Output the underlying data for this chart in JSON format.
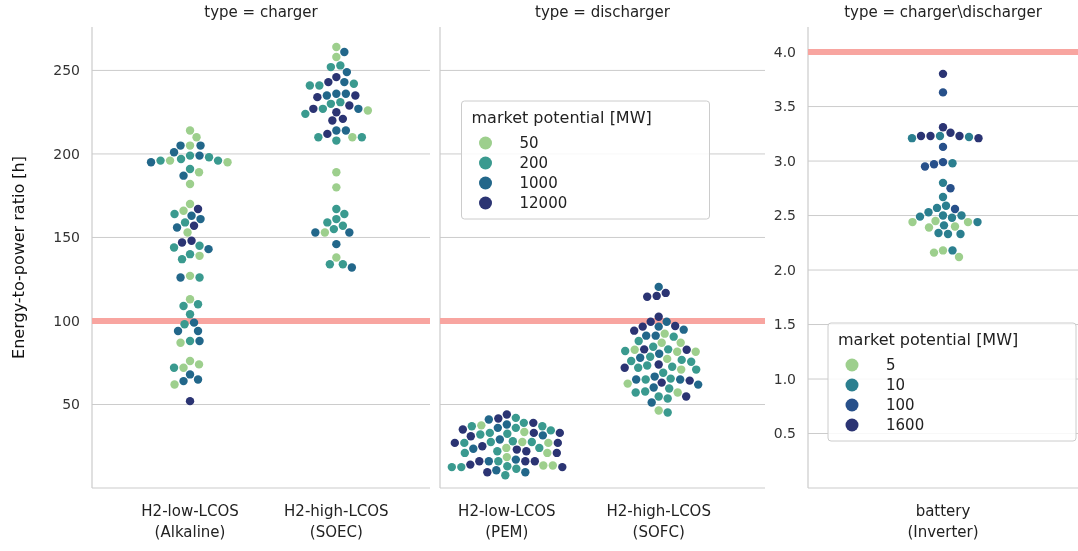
{
  "chart_data": [
    {
      "type": "scatter",
      "title": "type = charger",
      "ylabel": "Energy-to-power ratio [h]",
      "categories": [
        "H2-low-LCOS\n(Alkaline)",
        "H2-high-LCOS\n(SOEC)"
      ],
      "ylim": [
        0,
        276
      ],
      "yticks": [
        50,
        100,
        150,
        200,
        250
      ],
      "grid": "y",
      "marker": "circle",
      "ref_lines": [
        {
          "axis": "y",
          "value": 100,
          "color": "#f8a5a0"
        }
      ],
      "series": [
        {
          "color": "#9dcf8d",
          "x": [
            "H2-low-LCOS\n(Alkaline)",
            "H2-low-LCOS\n(Alkaline)",
            "H2-low-LCOS\n(Alkaline)",
            "H2-low-LCOS\n(Alkaline)",
            "H2-low-LCOS\n(Alkaline)",
            "H2-low-LCOS\n(Alkaline)",
            "H2-low-LCOS\n(Alkaline)",
            "H2-low-LCOS\n(Alkaline)",
            "H2-low-LCOS\n(Alkaline)",
            "H2-low-LCOS\n(Alkaline)",
            "H2-low-LCOS\n(Alkaline)",
            "H2-low-LCOS\n(Alkaline)",
            "H2-low-LCOS\n(Alkaline)",
            "H2-low-LCOS\n(Alkaline)",
            "H2-low-LCOS\n(Alkaline)",
            "H2-low-LCOS\n(Alkaline)",
            "H2-low-LCOS\n(Alkaline)",
            "H2-low-LCOS\n(Alkaline)",
            "H2-high-LCOS\n(SOEC)",
            "H2-high-LCOS\n(SOEC)",
            "H2-high-LCOS\n(SOEC)",
            "H2-high-LCOS\n(SOEC)",
            "H2-high-LCOS\n(SOEC)",
            "H2-high-LCOS\n(SOEC)",
            "H2-high-LCOS\n(SOEC)",
            "H2-high-LCOS\n(SOEC)"
          ],
          "values": [
            214,
            210,
            205,
            196,
            189,
            195,
            182,
            170,
            166,
            153,
            139,
            127,
            113,
            87,
            74,
            76,
            72,
            62,
            264,
            258,
            226,
            210,
            189,
            180,
            153,
            138
          ]
        },
        {
          "color": "#3a9a8f",
          "x": [
            "H2-low-LCOS\n(Alkaline)",
            "H2-low-LCOS\n(Alkaline)",
            "H2-low-LCOS\n(Alkaline)",
            "H2-low-LCOS\n(Alkaline)",
            "H2-low-LCOS\n(Alkaline)",
            "H2-low-LCOS\n(Alkaline)",
            "H2-low-LCOS\n(Alkaline)",
            "H2-low-LCOS\n(Alkaline)",
            "H2-low-LCOS\n(Alkaline)",
            "H2-low-LCOS\n(Alkaline)",
            "H2-low-LCOS\n(Alkaline)",
            "H2-low-LCOS\n(Alkaline)",
            "H2-low-LCOS\n(Alkaline)",
            "H2-low-LCOS\n(Alkaline)",
            "H2-low-LCOS\n(Alkaline)",
            "H2-low-LCOS\n(Alkaline)",
            "H2-low-LCOS\n(Alkaline)",
            "H2-low-LCOS\n(Alkaline)",
            "H2-low-LCOS\n(Alkaline)",
            "H2-high-LCOS\n(SOEC)",
            "H2-high-LCOS\n(SOEC)",
            "H2-high-LCOS\n(SOEC)",
            "H2-high-LCOS\n(SOEC)",
            "H2-high-LCOS\n(SOEC)",
            "H2-high-LCOS\n(SOEC)",
            "H2-high-LCOS\n(SOEC)",
            "H2-high-LCOS\n(SOEC)",
            "H2-high-LCOS\n(SOEC)",
            "H2-high-LCOS\n(SOEC)",
            "H2-high-LCOS\n(SOEC)",
            "H2-high-LCOS\n(SOEC)",
            "H2-high-LCOS\n(SOEC)",
            "H2-high-LCOS\n(SOEC)",
            "H2-high-LCOS\n(SOEC)",
            "H2-high-LCOS\n(SOEC)",
            "H2-high-LCOS\n(SOEC)",
            "H2-high-LCOS\n(SOEC)",
            "H2-high-LCOS\n(SOEC)",
            "H2-high-LCOS\n(SOEC)"
          ],
          "values": [
            199,
            196,
            198,
            197,
            196,
            191,
            164,
            159,
            144,
            145,
            137,
            140,
            126,
            109,
            110,
            104,
            98,
            88,
            72,
            253,
            252,
            241,
            241,
            242,
            231,
            230,
            227,
            224,
            210,
            208,
            210,
            167,
            164,
            161,
            159,
            157,
            155,
            134,
            134
          ]
        },
        {
          "color": "#22678a",
          "x": [
            "H2-low-LCOS\n(Alkaline)",
            "H2-low-LCOS\n(Alkaline)",
            "H2-low-LCOS\n(Alkaline)",
            "H2-low-LCOS\n(Alkaline)",
            "H2-low-LCOS\n(Alkaline)",
            "H2-low-LCOS\n(Alkaline)",
            "H2-low-LCOS\n(Alkaline)",
            "H2-low-LCOS\n(Alkaline)",
            "H2-low-LCOS\n(Alkaline)",
            "H2-low-LCOS\n(Alkaline)",
            "H2-low-LCOS\n(Alkaline)",
            "H2-low-LCOS\n(Alkaline)",
            "H2-low-LCOS\n(Alkaline)",
            "H2-low-LCOS\n(Alkaline)",
            "H2-low-LCOS\n(Alkaline)",
            "H2-low-LCOS\n(Alkaline)",
            "H2-low-LCOS\n(Alkaline)",
            "H2-low-LCOS\n(Alkaline)",
            "H2-high-LCOS\n(SOEC)",
            "H2-high-LCOS\n(SOEC)",
            "H2-high-LCOS\n(SOEC)",
            "H2-high-LCOS\n(SOEC)",
            "H2-high-LCOS\n(SOEC)",
            "H2-high-LCOS\n(SOEC)",
            "H2-high-LCOS\n(SOEC)",
            "H2-high-LCOS\n(SOEC)",
            "H2-high-LCOS\n(SOEC)",
            "H2-high-LCOS\n(SOEC)",
            "H2-high-LCOS\n(SOEC)",
            "H2-high-LCOS\n(SOEC)",
            "H2-high-LCOS\n(SOEC)"
          ],
          "values": [
            205,
            205,
            201,
            199,
            195,
            187,
            161,
            156,
            163,
            143,
            126,
            99,
            94,
            94,
            88,
            65,
            68,
            64,
            261,
            249,
            243,
            236,
            235,
            236,
            227,
            214,
            214,
            153,
            153,
            146,
            132
          ]
        },
        {
          "color": "#2b3473",
          "x": [
            "H2-low-LCOS\n(Alkaline)",
            "H2-low-LCOS\n(Alkaline)",
            "H2-low-LCOS\n(Alkaline)",
            "H2-low-LCOS\n(Alkaline)",
            "H2-low-LCOS\n(Alkaline)",
            "H2-high-LCOS\n(SOEC)",
            "H2-high-LCOS\n(SOEC)",
            "H2-high-LCOS\n(SOEC)",
            "H2-high-LCOS\n(SOEC)",
            "H2-high-LCOS\n(SOEC)",
            "H2-high-LCOS\n(SOEC)",
            "H2-high-LCOS\n(SOEC)",
            "H2-high-LCOS\n(SOEC)",
            "H2-high-LCOS\n(SOEC)",
            "H2-high-LCOS\n(SOEC)"
          ],
          "values": [
            167,
            157,
            147,
            148,
            52,
            246,
            243,
            234,
            235,
            229,
            227,
            225,
            220,
            221,
            212
          ]
        }
      ]
    },
    {
      "type": "scatter",
      "title": "type = discharger",
      "tick_labels": "x",
      "categories": [
        "H2-low-LCOS\n(PEM)",
        "H2-high-LCOS\n(SOFC)"
      ],
      "ylim": [
        0,
        276
      ],
      "yticks": [
        50,
        100,
        150,
        200,
        250
      ],
      "grid": "y",
      "marker": "circle",
      "legend": "top",
      "legend_title": "market potential [MW]",
      "ref_lines": [
        {
          "axis": "y",
          "value": 100,
          "color": "#f8a5a0"
        }
      ],
      "series": [
        {
          "name": "50",
          "color": "#9dcf8d",
          "x": [
            "H2-low-LCOS\n(PEM)",
            "H2-low-LCOS\n(PEM)",
            "H2-low-LCOS\n(PEM)",
            "H2-low-LCOS\n(PEM)",
            "H2-low-LCOS\n(PEM)",
            "H2-low-LCOS\n(PEM)",
            "H2-low-LCOS\n(PEM)",
            "H2-low-LCOS\n(PEM)",
            "H2-low-LCOS\n(PEM)",
            "H2-high-LCOS\n(SOFC)",
            "H2-high-LCOS\n(SOFC)",
            "H2-high-LCOS\n(SOFC)",
            "H2-high-LCOS\n(SOFC)",
            "H2-high-LCOS\n(SOFC)",
            "H2-high-LCOS\n(SOFC)",
            "H2-high-LCOS\n(SOFC)",
            "H2-high-LCOS\n(SOFC)",
            "H2-high-LCOS\n(SOFC)",
            "H2-high-LCOS\n(SOFC)",
            "H2-high-LCOS\n(SOFC)"
          ],
          "values": [
            37.5,
            33.5,
            27,
            27.5,
            24,
            21,
            18.5,
            13.5,
            13.5,
            92.4,
            87,
            87,
            81.6,
            81.6,
            82.8,
            77.3,
            70.9,
            62.5,
            57.2,
            46.4
          ]
        },
        {
          "name": "200",
          "color": "#3a9a8f",
          "x": [
            "H2-low-LCOS\n(PEM)",
            "H2-low-LCOS\n(PEM)",
            "H2-low-LCOS\n(PEM)",
            "H2-low-LCOS\n(PEM)",
            "H2-low-LCOS\n(PEM)",
            "H2-low-LCOS\n(PEM)",
            "H2-low-LCOS\n(PEM)",
            "H2-low-LCOS\n(PEM)",
            "H2-low-LCOS\n(PEM)",
            "H2-low-LCOS\n(PEM)",
            "H2-low-LCOS\n(PEM)",
            "H2-low-LCOS\n(PEM)",
            "H2-low-LCOS\n(PEM)",
            "H2-low-LCOS\n(PEM)",
            "H2-low-LCOS\n(PEM)",
            "H2-low-LCOS\n(PEM)",
            "H2-low-LCOS\n(PEM)",
            "H2-low-LCOS\n(PEM)",
            "H2-low-LCOS\n(PEM)",
            "H2-low-LCOS\n(PEM)",
            "H2-low-LCOS\n(PEM)",
            "H2-low-LCOS\n(PEM)",
            "H2-high-LCOS\n(SOFC)",
            "H2-high-LCOS\n(SOFC)",
            "H2-high-LCOS\n(SOFC)",
            "H2-high-LCOS\n(SOFC)",
            "H2-high-LCOS\n(SOFC)",
            "H2-high-LCOS\n(SOFC)",
            "H2-high-LCOS\n(SOFC)",
            "H2-high-LCOS\n(SOFC)",
            "H2-high-LCOS\n(SOFC)",
            "H2-high-LCOS\n(SOFC)",
            "H2-high-LCOS\n(SOFC)",
            "H2-high-LCOS\n(SOFC)",
            "H2-high-LCOS\n(SOFC)",
            "H2-high-LCOS\n(SOFC)",
            "H2-high-LCOS\n(SOFC)",
            "H2-high-LCOS\n(SOFC)",
            "H2-high-LCOS\n(SOFC)",
            "H2-high-LCOS\n(SOFC)",
            "H2-high-LCOS\n(SOFC)",
            "H2-high-LCOS\n(SOFC)",
            "H2-high-LCOS\n(SOFC)",
            "H2-high-LCOS\n(SOFC)"
          ],
          "values": [
            42,
            36,
            37,
            37,
            39,
            34.5,
            32,
            32.5,
            33,
            27,
            28,
            27.5,
            27.5,
            24,
            22,
            21,
            16,
            13,
            11.5,
            12.5,
            12.5,
            7.6,
            90.6,
            88,
            84.6,
            82,
            83,
            76,
            78.6,
            76.7,
            75.6,
            73.3,
            72,
            72.6,
            70.9,
            69,
            65,
            65.5,
            57.2,
            59.6,
            57.8,
            53.6,
            54.8,
            45.2
          ]
        },
        {
          "name": "1000",
          "color": "#22678a",
          "x": [
            "H2-low-LCOS\n(PEM)",
            "H2-low-LCOS\n(PEM)",
            "H2-low-LCOS\n(PEM)",
            "H2-low-LCOS\n(PEM)",
            "H2-low-LCOS\n(PEM)",
            "H2-low-LCOS\n(PEM)",
            "H2-low-LCOS\n(PEM)",
            "H2-low-LCOS\n(PEM)",
            "H2-low-LCOS\n(PEM)",
            "H2-low-LCOS\n(PEM)",
            "H2-high-LCOS\n(SOFC)",
            "H2-high-LCOS\n(SOFC)",
            "H2-high-LCOS\n(SOFC)",
            "H2-high-LCOS\n(SOFC)",
            "H2-high-LCOS\n(SOFC)",
            "H2-high-LCOS\n(SOFC)",
            "H2-high-LCOS\n(SOFC)",
            "H2-high-LCOS\n(SOFC)",
            "H2-high-LCOS\n(SOFC)",
            "H2-high-LCOS\n(SOFC)",
            "H2-high-LCOS\n(SOFC)",
            "H2-high-LCOS\n(SOFC)",
            "H2-high-LCOS\n(SOFC)",
            "H2-high-LCOS\n(SOFC)"
          ],
          "values": [
            41,
            36,
            38,
            31.5,
            29,
            23.5,
            17,
            16,
            10.6,
            9.4,
            120.4,
            99.5,
            96.6,
            94.8,
            91.2,
            91.2,
            80.4,
            78,
            66.7,
            65,
            65,
            61.9,
            60.2,
            51.2
          ]
        },
        {
          "name": "12000",
          "color": "#2b3473",
          "x": [
            "H2-low-LCOS\n(PEM)",
            "H2-low-LCOS\n(PEM)",
            "H2-low-LCOS\n(PEM)",
            "H2-low-LCOS\n(PEM)",
            "H2-low-LCOS\n(PEM)",
            "H2-low-LCOS\n(PEM)",
            "H2-low-LCOS\n(PEM)",
            "H2-low-LCOS\n(PEM)",
            "H2-low-LCOS\n(PEM)",
            "H2-low-LCOS\n(PEM)",
            "H2-low-LCOS\n(PEM)",
            "H2-low-LCOS\n(PEM)",
            "H2-low-LCOS\n(PEM)",
            "H2-low-LCOS\n(PEM)",
            "H2-low-LCOS\n(PEM)",
            "H2-low-LCOS\n(PEM)",
            "H2-low-LCOS\n(PEM)",
            "H2-low-LCOS\n(PEM)",
            "H2-low-LCOS\n(PEM)",
            "H2-high-LCOS\n(SOFC)",
            "H2-high-LCOS\n(SOFC)",
            "H2-high-LCOS\n(SOFC)",
            "H2-high-LCOS\n(SOFC)",
            "H2-high-LCOS\n(SOFC)",
            "H2-high-LCOS\n(SOFC)",
            "H2-high-LCOS\n(SOFC)",
            "H2-high-LCOS\n(SOFC)",
            "H2-high-LCOS\n(SOFC)",
            "H2-high-LCOS\n(SOFC)",
            "H2-high-LCOS\n(SOFC)",
            "H2-high-LCOS\n(SOFC)",
            "H2-high-LCOS\n(SOFC)",
            "H2-high-LCOS\n(SOFC)",
            "H2-high-LCOS\n(SOFC)"
          ],
          "values": [
            41.6,
            44,
            39,
            31,
            33,
            33,
            35,
            27,
            27,
            22,
            23,
            21,
            25,
            16,
            16,
            16,
            12.5,
            14,
            9.4,
            116.8,
            115,
            114.5,
            102.5,
            99.5,
            97,
            96.6,
            94.2,
            82.8,
            83,
            73.9,
            72,
            63.1,
            64.3,
            54.8
          ]
        }
      ]
    },
    {
      "type": "scatter",
      "title": "type = charger\\discharger",
      "categories": [
        "battery\n(Inverter)"
      ],
      "ylim": [
        0,
        4.23
      ],
      "yticks": [
        0.5,
        {
          "value": 1,
          "label": "1.0"
        },
        1.5,
        {
          "value": 2,
          "label": "2.0"
        },
        2.5,
        {
          "value": 3,
          "label": "3.0"
        },
        3.5,
        {
          "value": 4,
          "label": "4.0"
        }
      ],
      "grid": "y",
      "marker": "circle",
      "legend": "bottom",
      "legend_title": "market potential [MW]",
      "ref_lines": [
        {
          "axis": "y",
          "value": 4.0,
          "color": "#f8a5a0"
        }
      ],
      "series": [
        {
          "name": "5",
          "color": "#9dcf8d",
          "x": [
            "battery\n(Inverter)",
            "battery\n(Inverter)",
            "battery\n(Inverter)",
            "battery\n(Inverter)",
            "battery\n(Inverter)",
            "battery\n(Inverter)",
            "battery\n(Inverter)",
            "battery\n(Inverter)"
          ],
          "values": [
            2.44,
            2.45,
            2.44,
            2.4,
            2.39,
            2.18,
            2.16,
            2.12
          ]
        },
        {
          "name": "10",
          "color": "#2b7f8f",
          "x": [
            "battery\n(Inverter)",
            "battery\n(Inverter)",
            "battery\n(Inverter)",
            "battery\n(Inverter)",
            "battery\n(Inverter)",
            "battery\n(Inverter)",
            "battery\n(Inverter)",
            "battery\n(Inverter)",
            "battery\n(Inverter)",
            "battery\n(Inverter)",
            "battery\n(Inverter)",
            "battery\n(Inverter)",
            "battery\n(Inverter)",
            "battery\n(Inverter)",
            "battery\n(Inverter)",
            "battery\n(Inverter)",
            "battery\n(Inverter)",
            "battery\n(Inverter)",
            "battery\n(Inverter)"
          ],
          "values": [
            3.21,
            3.22,
            3.23,
            2.98,
            2.8,
            2.67,
            2.59,
            2.57,
            2.53,
            2.5,
            2.48,
            2.5,
            2.49,
            2.44,
            2.41,
            2.34,
            2.33,
            2.33,
            2.18
          ]
        },
        {
          "name": "100",
          "color": "#27508a",
          "x": [
            "battery\n(Inverter)",
            "battery\n(Inverter)",
            "battery\n(Inverter)",
            "battery\n(Inverter)",
            "battery\n(Inverter)",
            "battery\n(Inverter)",
            "battery\n(Inverter)"
          ],
          "values": [
            3.63,
            3.13,
            2.99,
            2.97,
            2.95,
            2.75,
            2.56
          ]
        },
        {
          "name": "1600",
          "color": "#2b3473",
          "x": [
            "battery\n(Inverter)",
            "battery\n(Inverter)",
            "battery\n(Inverter)",
            "battery\n(Inverter)",
            "battery\n(Inverter)",
            "battery\n(Inverter)",
            "battery\n(Inverter)"
          ],
          "values": [
            3.8,
            3.31,
            3.26,
            3.23,
            3.23,
            3.21,
            3.23
          ]
        }
      ]
    }
  ]
}
